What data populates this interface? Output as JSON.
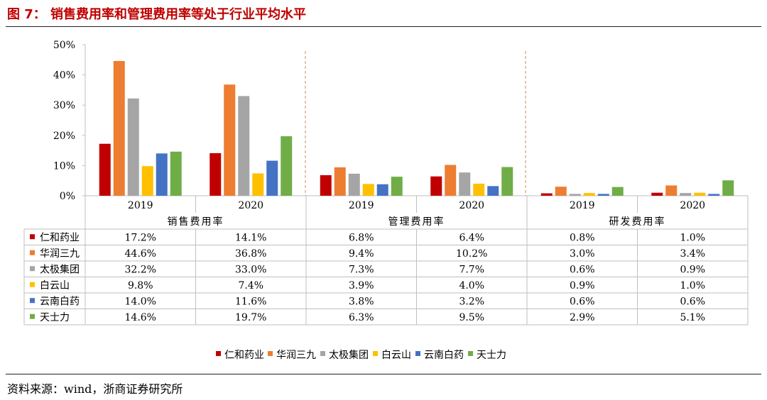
{
  "figure_title": "图 7：  销售费用率和管理费用率等处于行业平均水平",
  "source": "资料来源：wind，浙商证券研究所",
  "chart_data": {
    "type": "bar",
    "y_ticks": [
      "0%",
      "10%",
      "20%",
      "30%",
      "40%",
      "50%"
    ],
    "ylim": [
      0,
      50
    ],
    "groups": [
      {
        "name": "销售费用率",
        "years": [
          "2019",
          "2020"
        ]
      },
      {
        "name": "管理费用率",
        "years": [
          "2019",
          "2020"
        ]
      },
      {
        "name": "研发费用率",
        "years": [
          "2019",
          "2020"
        ]
      }
    ],
    "series": [
      {
        "name": "仁和药业",
        "color": "#c00000",
        "values": [
          17.2,
          14.1,
          6.8,
          6.4,
          0.8,
          1.0
        ],
        "labels": [
          "17.2%",
          "14.1%",
          "6.8%",
          "6.4%",
          "0.8%",
          "1.0%"
        ]
      },
      {
        "name": "华润三九",
        "color": "#ed7d31",
        "values": [
          44.6,
          36.8,
          9.4,
          10.2,
          3.0,
          3.4
        ],
        "labels": [
          "44.6%",
          "36.8%",
          "9.4%",
          "10.2%",
          "3.0%",
          "3.4%"
        ]
      },
      {
        "name": "太极集团",
        "color": "#a5a5a5",
        "values": [
          32.2,
          33.0,
          7.3,
          7.7,
          0.6,
          0.9
        ],
        "labels": [
          "32.2%",
          "33.0%",
          "7.3%",
          "7.7%",
          "0.6%",
          "0.9%"
        ]
      },
      {
        "name": "白云山",
        "color": "#ffc000",
        "values": [
          9.8,
          7.4,
          3.9,
          4.0,
          0.9,
          1.0
        ],
        "labels": [
          "9.8%",
          "7.4%",
          "3.9%",
          "4.0%",
          "0.9%",
          "1.0%"
        ]
      },
      {
        "name": "云南白药",
        "color": "#4472c4",
        "values": [
          14.0,
          11.6,
          3.8,
          3.2,
          0.6,
          0.6
        ],
        "labels": [
          "14.0%",
          "11.6%",
          "3.8%",
          "3.2%",
          "0.6%",
          "0.6%"
        ]
      },
      {
        "name": "天士力",
        "color": "#70ad47",
        "values": [
          14.6,
          19.7,
          6.3,
          9.5,
          2.9,
          5.1
        ],
        "labels": [
          "14.6%",
          "19.7%",
          "6.3%",
          "9.5%",
          "2.9%",
          "5.1%"
        ]
      }
    ],
    "grid": false,
    "legend_position": "bottom"
  }
}
